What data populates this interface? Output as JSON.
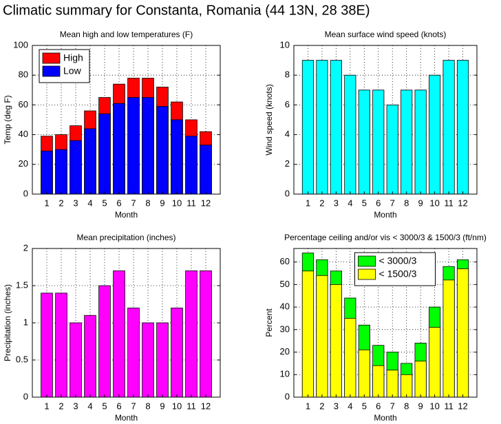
{
  "title": "Climatic summary for Constanta, Romania (44 13N, 28 38E)",
  "chart_data": [
    {
      "type": "bar",
      "title": "Mean high and low temperatures (F)",
      "xlabel": "Month",
      "ylabel": "Temp (deg F)",
      "categories": [
        "1",
        "2",
        "3",
        "4",
        "5",
        "6",
        "7",
        "8",
        "9",
        "10",
        "11",
        "12"
      ],
      "series": [
        {
          "name": "High",
          "color": "#ff0000",
          "values": [
            39,
            40,
            46,
            56,
            65,
            74,
            78,
            78,
            72,
            62,
            50,
            42
          ]
        },
        {
          "name": "Low",
          "color": "#0000ff",
          "values": [
            29,
            30,
            36,
            44,
            54,
            61,
            65,
            65,
            59,
            50,
            39,
            33
          ]
        }
      ],
      "ylim": [
        0,
        100
      ],
      "yticks": [
        0,
        20,
        40,
        60,
        80,
        100
      ],
      "grid": true,
      "legend": "upper left"
    },
    {
      "type": "bar",
      "title": "Mean surface wind speed (knots)",
      "xlabel": "Month",
      "ylabel": "Wind speed (knots)",
      "categories": [
        "1",
        "2",
        "3",
        "4",
        "5",
        "6",
        "7",
        "8",
        "9",
        "10",
        "11",
        "12"
      ],
      "series": [
        {
          "color": "#00ffff",
          "values": [
            9,
            9,
            9,
            8,
            7,
            7,
            6,
            7,
            7,
            8,
            9,
            9
          ]
        }
      ],
      "ylim": [
        0,
        10
      ],
      "yticks": [
        0,
        2,
        4,
        6,
        8,
        10
      ],
      "grid": true
    },
    {
      "type": "bar",
      "title": "Mean precipitation (inches)",
      "xlabel": "Month",
      "ylabel": "Precipitation (inches)",
      "categories": [
        "1",
        "2",
        "3",
        "4",
        "5",
        "6",
        "7",
        "8",
        "9",
        "10",
        "11",
        "12"
      ],
      "series": [
        {
          "color": "#ff00ff",
          "values": [
            1.4,
            1.4,
            1.0,
            1.1,
            1.5,
            1.7,
            1.2,
            1.0,
            1.0,
            1.2,
            1.7,
            1.7
          ]
        }
      ],
      "ylim": [
        0,
        2
      ],
      "yticks": [
        0,
        0.5,
        1,
        1.5,
        2
      ],
      "grid": true
    },
    {
      "type": "bar",
      "title": "Percentage ceiling and/or vis < 3000/3 & 1500/3 (ft/nm)",
      "xlabel": "Month",
      "ylabel": "Percent",
      "categories": [
        "1",
        "2",
        "3",
        "4",
        "5",
        "6",
        "7",
        "8",
        "9",
        "10",
        "11",
        "12"
      ],
      "series": [
        {
          "name": "< 3000/3",
          "color": "#00ff00",
          "values": [
            64,
            61,
            56,
            44,
            32,
            23,
            20,
            15,
            24,
            40,
            58,
            61
          ]
        },
        {
          "name": "< 1500/3",
          "color": "#ffff00",
          "values": [
            56,
            54,
            50,
            35,
            21,
            14,
            12,
            10,
            16,
            31,
            52,
            57
          ]
        }
      ],
      "ylim": [
        0,
        66
      ],
      "yticks": [
        0,
        10,
        20,
        30,
        40,
        50,
        60
      ],
      "grid": true,
      "legend": "upper center"
    }
  ]
}
